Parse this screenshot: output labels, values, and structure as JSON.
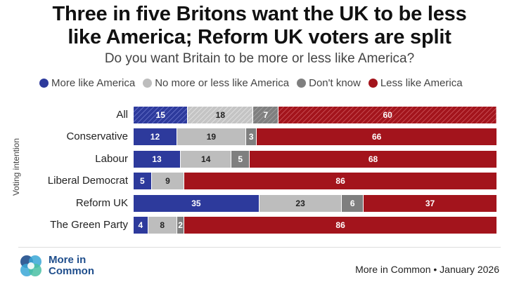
{
  "header": {
    "title_line1": "Three in five Britons want the UK to be less",
    "title_line2": "like America; Reform UK voters are split",
    "subtitle": "Do you want Britain to be more or less like America?"
  },
  "colors": {
    "more": "#2d3a9c",
    "neither": "#bdbdbd",
    "dont_know": "#7f7f7f",
    "less": "#a3141c"
  },
  "chart_data": {
    "type": "bar",
    "orientation": "horizontal",
    "stacked": true,
    "ylabel": "Voting intention",
    "categories": [
      "All",
      "Conservative",
      "Labour",
      "Liberal Democrat",
      "Reform UK",
      "The Green Party"
    ],
    "series": [
      {
        "name": "More like America",
        "values": [
          15,
          12,
          13,
          5,
          35,
          4
        ]
      },
      {
        "name": "No more or less like America",
        "values": [
          18,
          19,
          14,
          9,
          23,
          8
        ]
      },
      {
        "name": "Don't know",
        "values": [
          7,
          3,
          5,
          0,
          6,
          2
        ]
      },
      {
        "name": "Less like America",
        "values": [
          60,
          66,
          68,
          86,
          37,
          86
        ]
      }
    ],
    "labels": [
      [
        "15",
        "18",
        "7",
        "60"
      ],
      [
        "12",
        "19",
        "3",
        "66"
      ],
      [
        "13",
        "14",
        "5",
        "68"
      ],
      [
        "5",
        "9",
        "",
        "86"
      ],
      [
        "35",
        "23",
        "6",
        "37"
      ],
      [
        "4",
        "8",
        "2",
        "86"
      ]
    ],
    "xlim": [
      0,
      100
    ],
    "legend": "top",
    "grid": false,
    "hatched_row": "All"
  },
  "footer": {
    "logo_line1": "More in",
    "logo_line2": "Common",
    "source": "More in Common • January 2026"
  }
}
